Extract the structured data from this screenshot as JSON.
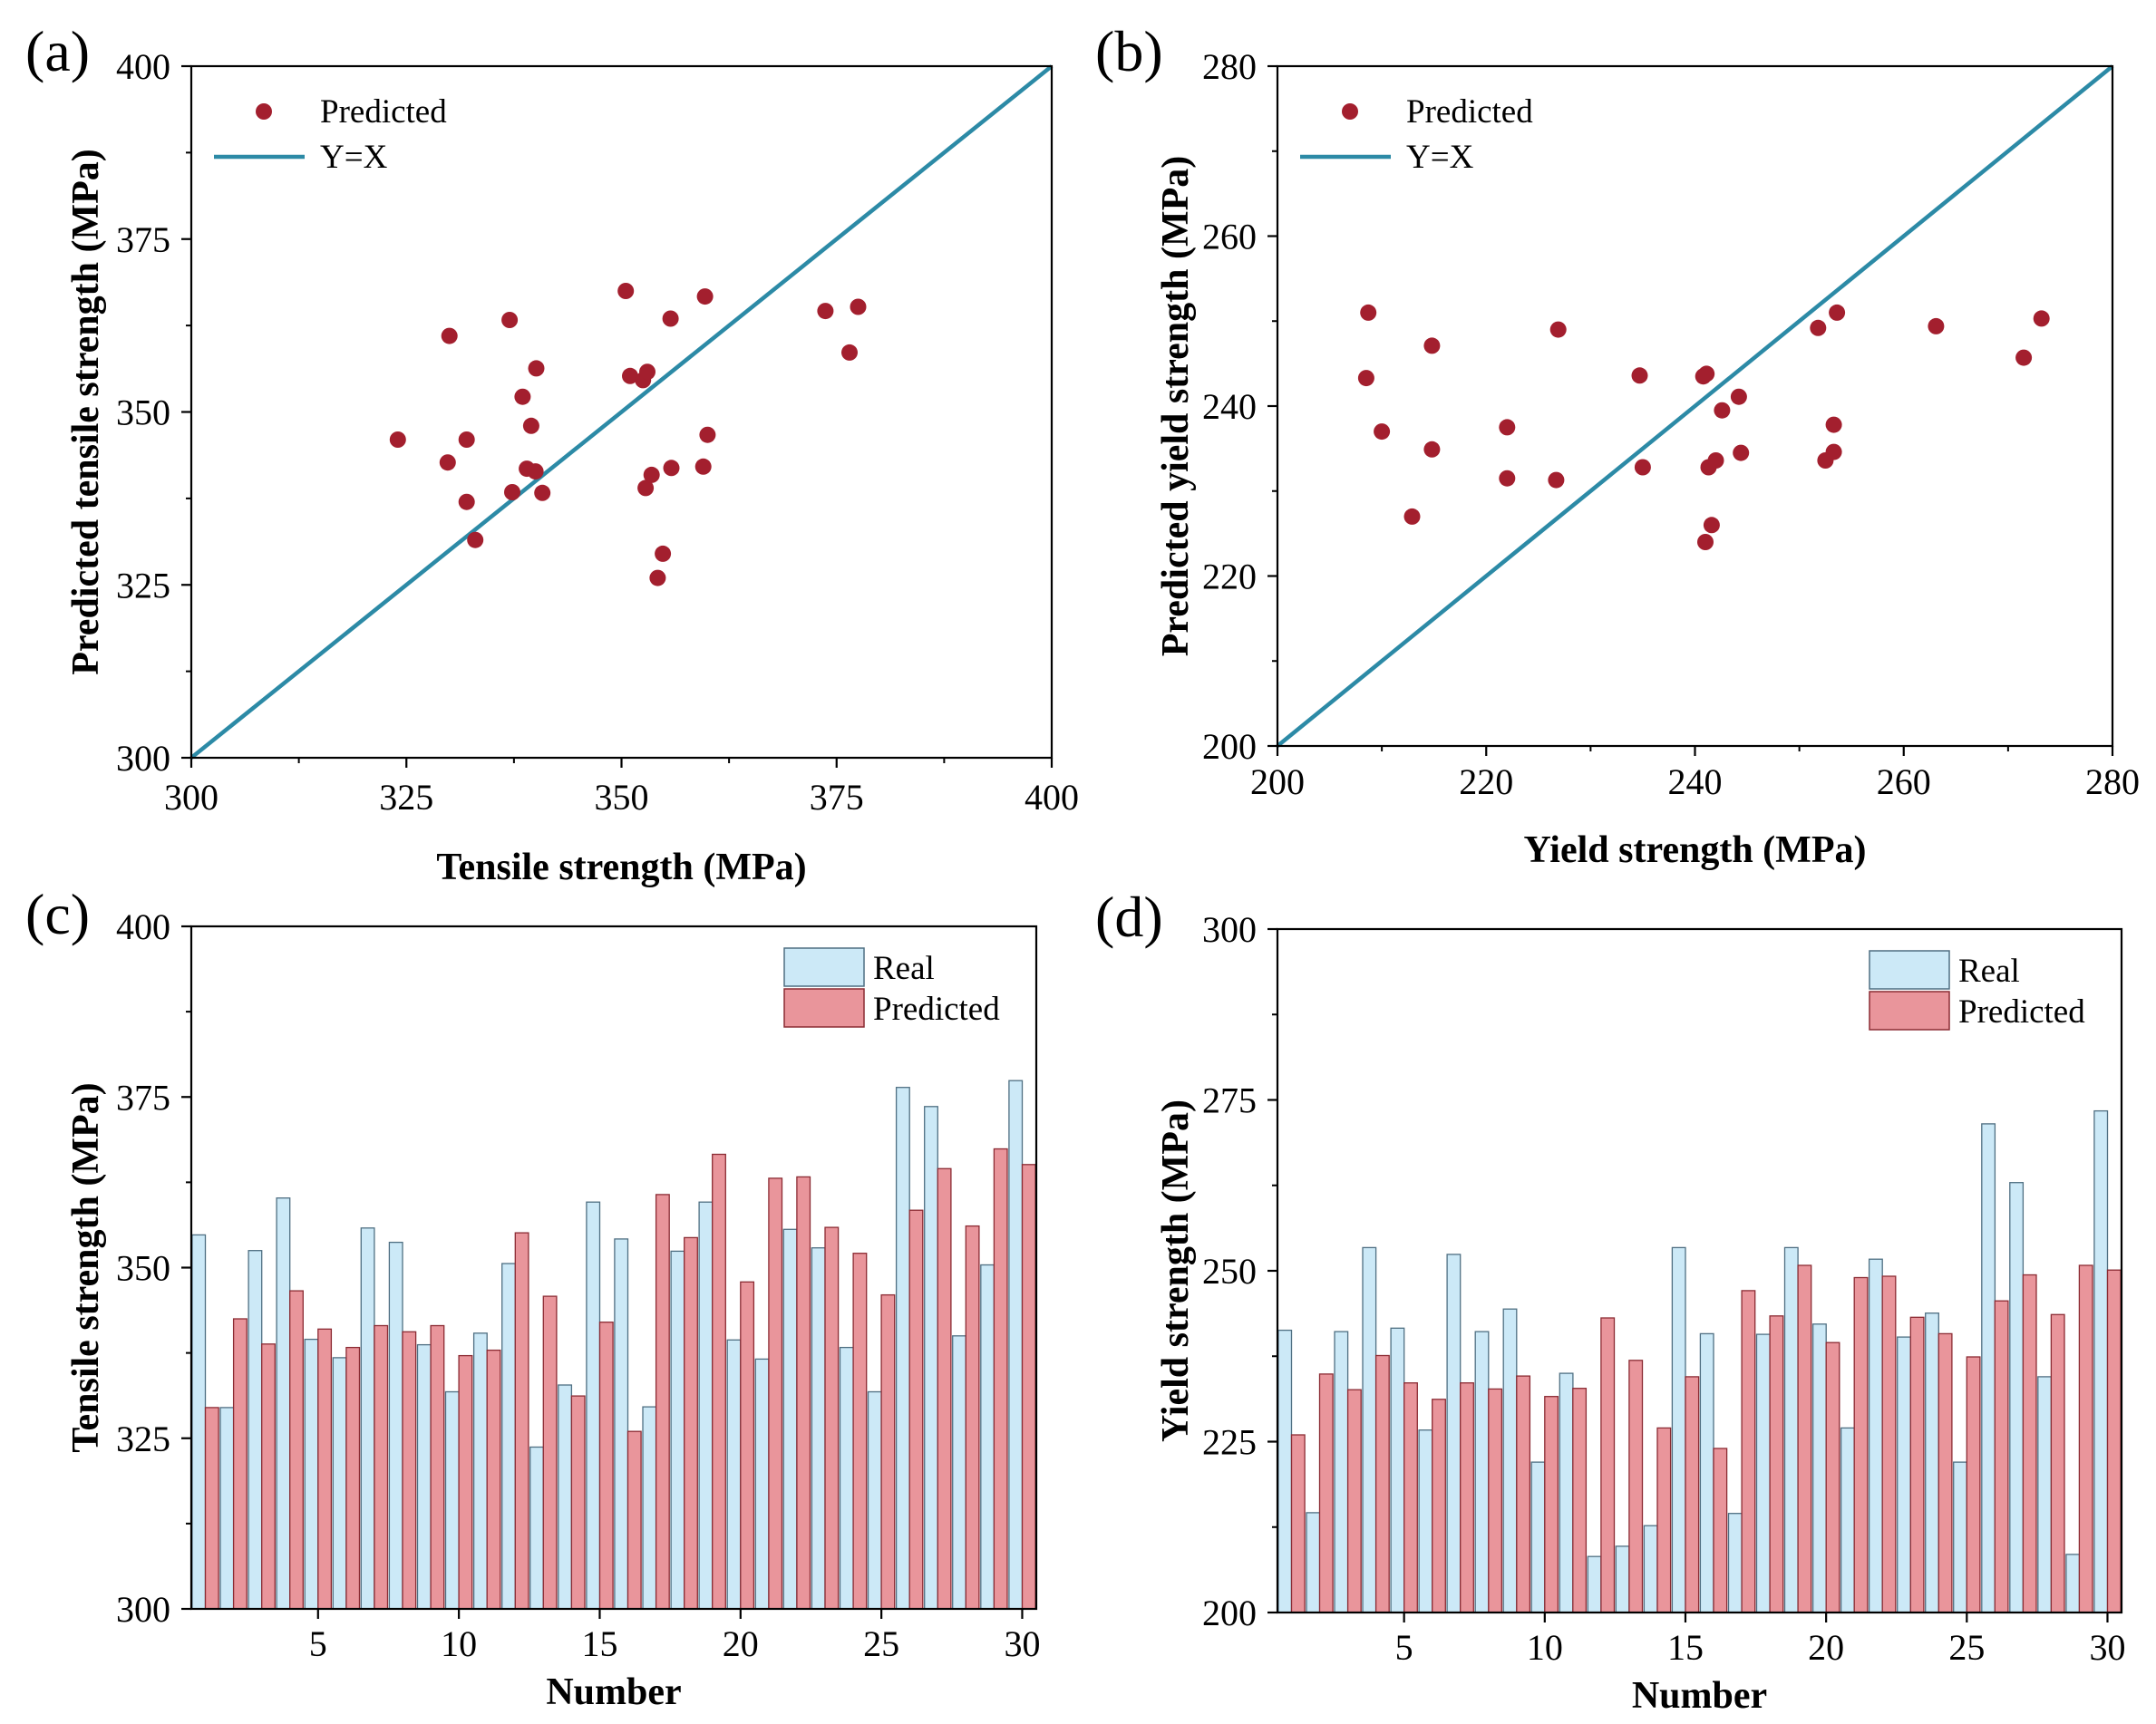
{
  "figure": {
    "colors": {
      "scatter": "#a31f2e",
      "identity_line": "#2c8aa6",
      "real_fill": "#cce9f7",
      "real_stroke": "#4f6f82",
      "pred_fill": "#e9959b",
      "pred_stroke": "#8b2b33",
      "axis": "#000000"
    }
  },
  "chart_data": [
    {
      "panel": "(a)",
      "type": "scatter",
      "xlabel": "Tensile strength (MPa)",
      "ylabel": "Predicted tensile strength (MPa)",
      "xlim": [
        300,
        400
      ],
      "ylim": [
        300,
        400
      ],
      "xticks": [
        300,
        325,
        350,
        375,
        400
      ],
      "yticks": [
        300,
        325,
        350,
        375,
        400
      ],
      "legend": {
        "position": "top-left",
        "entries": [
          {
            "label": "Predicted",
            "kind": "marker"
          },
          {
            "label": "Y=X",
            "kind": "line"
          }
        ]
      },
      "identity_line": [
        [
          300,
          300
        ],
        [
          400,
          400
        ]
      ],
      "points": [
        [
          324,
          346
        ],
        [
          329.8,
          342.7
        ],
        [
          330,
          361
        ],
        [
          332,
          346
        ],
        [
          332,
          337
        ],
        [
          333,
          331.5
        ],
        [
          337,
          363.3
        ],
        [
          337.3,
          338.4
        ],
        [
          338.5,
          352.2
        ],
        [
          339,
          341.8
        ],
        [
          339.5,
          348
        ],
        [
          340,
          341.4
        ],
        [
          340.1,
          356.3
        ],
        [
          340.8,
          338.3
        ],
        [
          350.5,
          367.5
        ],
        [
          351,
          355.2
        ],
        [
          352.5,
          354.6
        ],
        [
          352.8,
          339
        ],
        [
          353,
          355.8
        ],
        [
          353.5,
          340.9
        ],
        [
          354.2,
          326
        ],
        [
          354.8,
          329.5
        ],
        [
          355.7,
          363.5
        ],
        [
          355.8,
          341.9
        ],
        [
          359.5,
          342.1
        ],
        [
          359.7,
          366.7
        ],
        [
          360,
          346.7
        ],
        [
          373.7,
          364.6
        ],
        [
          376.5,
          358.6
        ],
        [
          377.5,
          365.2
        ]
      ]
    },
    {
      "panel": "(b)",
      "type": "scatter",
      "xlabel": "Yield strength (MPa)",
      "ylabel": "Predicted yield strength (MPa)",
      "xlim": [
        200,
        280
      ],
      "ylim": [
        200,
        280
      ],
      "xticks": [
        200,
        220,
        240,
        260,
        280
      ],
      "yticks": [
        200,
        220,
        240,
        260,
        280
      ],
      "legend": {
        "position": "top-left",
        "entries": [
          {
            "label": "Predicted",
            "kind": "marker"
          },
          {
            "label": "Y=X",
            "kind": "line"
          }
        ]
      },
      "identity_line": [
        [
          200,
          200
        ],
        [
          280,
          280
        ]
      ],
      "points": [
        [
          208.5,
          243.3
        ],
        [
          208.7,
          251
        ],
        [
          210,
          237
        ],
        [
          212.9,
          227
        ],
        [
          214.8,
          234.9
        ],
        [
          214.8,
          247.1
        ],
        [
          222,
          237.5
        ],
        [
          222,
          231.5
        ],
        [
          226.7,
          231.3
        ],
        [
          226.9,
          249
        ],
        [
          234.7,
          243.6
        ],
        [
          235,
          232.8
        ],
        [
          240.8,
          243.5
        ],
        [
          241.1,
          243.8
        ],
        [
          241,
          224
        ],
        [
          241.3,
          232.8
        ],
        [
          241.6,
          226
        ],
        [
          242,
          233.6
        ],
        [
          242.6,
          239.5
        ],
        [
          244.2,
          241.1
        ],
        [
          244.4,
          234.5
        ],
        [
          251.8,
          249.2
        ],
        [
          252.5,
          233.6
        ],
        [
          253.3,
          237.8
        ],
        [
          253.3,
          234.6
        ],
        [
          253.6,
          251
        ],
        [
          263.1,
          249.4
        ],
        [
          271.5,
          245.7
        ],
        [
          273.2,
          250.3
        ]
      ]
    },
    {
      "panel": "(c)",
      "type": "bar",
      "xlabel": "Number",
      "ylabel": "Tensile strength (MPa)",
      "xlim": [
        0.5,
        30.5
      ],
      "ylim": [
        300,
        400
      ],
      "xticks": [
        5,
        10,
        15,
        20,
        25,
        30
      ],
      "yticks": [
        300,
        325,
        350,
        375,
        400
      ],
      "legend": {
        "position": "top-right",
        "entries": [
          {
            "label": "Real",
            "kind": "real"
          },
          {
            "label": "Predicted",
            "kind": "pred"
          }
        ]
      },
      "categories": [
        1,
        2,
        3,
        4,
        5,
        6,
        7,
        8,
        9,
        10,
        11,
        12,
        13,
        14,
        15,
        16,
        17,
        18,
        19,
        20,
        21,
        22,
        23,
        24,
        25,
        26,
        27,
        28,
        29,
        30
      ],
      "series": [
        {
          "name": "Real",
          "values": [
            354.8,
            329.5,
            352.5,
            360.2,
            339.5,
            336.8,
            355.8,
            353.7,
            338.7,
            331.8,
            340.4,
            350.6,
            323.7,
            332.8,
            359.6,
            354.2,
            329.6,
            352.4,
            359.6,
            339.4,
            336.6,
            355.6,
            352.9,
            338.3,
            331.8,
            376.4,
            373.6,
            340,
            350.4,
            377.4
          ]
        },
        {
          "name": "Predicted",
          "values": [
            329.5,
            342.5,
            338.8,
            346.6,
            341,
            338.3,
            341.5,
            340.6,
            341.5,
            337.1,
            337.9,
            355.1,
            345.8,
            331.2,
            342,
            326,
            360.7,
            354.4,
            366.6,
            347.9,
            363.1,
            363.3,
            355.9,
            352.1,
            346,
            358.4,
            364.5,
            356.1,
            367.4,
            365.1
          ]
        }
      ]
    },
    {
      "panel": "(d)",
      "type": "bar",
      "xlabel": "Number",
      "ylabel": "Yield strength (MPa)",
      "xlim": [
        0.5,
        30.5
      ],
      "ylim": [
        200,
        300
      ],
      "xticks": [
        5,
        10,
        15,
        20,
        25,
        30
      ],
      "yticks": [
        200,
        225,
        250,
        275,
        300
      ],
      "legend": {
        "position": "top-right",
        "entries": [
          {
            "label": "Real",
            "kind": "real"
          },
          {
            "label": "Predicted",
            "kind": "pred"
          }
        ]
      },
      "categories": [
        1,
        2,
        3,
        4,
        5,
        6,
        7,
        8,
        9,
        10,
        11,
        12,
        13,
        14,
        15,
        16,
        17,
        18,
        19,
        20,
        21,
        22,
        23,
        24,
        25,
        26,
        27,
        28,
        29,
        30
      ],
      "series": [
        {
          "name": "Real",
          "values": [
            241.3,
            214.6,
            241.1,
            253.4,
            241.6,
            226.7,
            252.4,
            241.1,
            244.4,
            222,
            235,
            208.2,
            209.7,
            212.7,
            253.4,
            240.8,
            214.5,
            240.7,
            253.4,
            242.2,
            227,
            251.7,
            240.3,
            243.8,
            222,
            271.5,
            262.9,
            234.5,
            208.5,
            273.4
          ]
        },
        {
          "name": "Predicted",
          "values": [
            226,
            234.9,
            232.6,
            237.6,
            233.6,
            231.2,
            233.6,
            232.7,
            234.6,
            231.6,
            232.8,
            243.1,
            236.9,
            227,
            234.5,
            224,
            247.1,
            243.4,
            250.8,
            239.5,
            249,
            249.2,
            243.2,
            240.8,
            237.4,
            245.6,
            249.4,
            243.6,
            250.8,
            250.1
          ]
        }
      ]
    }
  ]
}
